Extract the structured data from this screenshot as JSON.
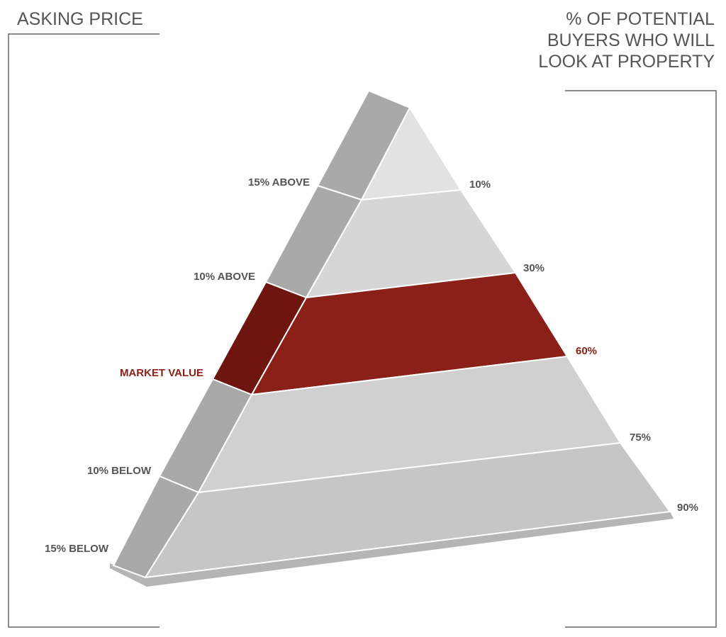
{
  "left_header": "ASKING PRICE",
  "right_header": [
    "% OF POTENTIAL",
    "BUYERS WHO WILL",
    "LOOK AT PROPERTY"
  ],
  "levels": [
    {
      "price": "15% ABOVE",
      "buyers": "10%"
    },
    {
      "price": "10% ABOVE",
      "buyers": "30%"
    },
    {
      "price": "MARKET VALUE",
      "buyers": "60%"
    },
    {
      "price": "10% BELOW",
      "buyers": "75%"
    },
    {
      "price": "15% BELOW",
      "buyers": "90%"
    }
  ]
}
